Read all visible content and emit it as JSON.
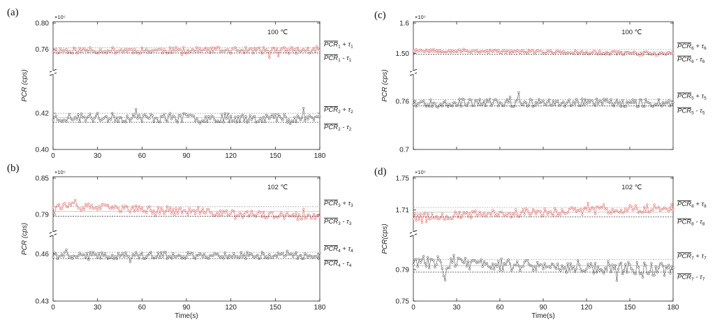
{
  "colors": {
    "red_series": "#e8706e",
    "gray_series": "#666666",
    "band_line": "#999999",
    "mean_line": "#222222"
  },
  "chart_data": [
    {
      "type": "line",
      "panel": "(a)",
      "temperature": "100 ℃",
      "multiplier": "×10⁵",
      "ylabel": "PCR (cps)",
      "xlabel": "",
      "xlim": [
        0,
        180
      ],
      "x_ticks": [
        "0",
        "30",
        "60",
        "90",
        "120",
        "150",
        "180"
      ],
      "broken_y_axis": true,
      "upper": {
        "ylim": [
          0.73,
          0.8
        ],
        "y_ticks": [
          "0.76",
          "0.80"
        ]
      },
      "lower": {
        "ylim": [
          0.4,
          0.44
        ],
        "y_ticks": [
          "0.40",
          "0.42"
        ]
      },
      "series": [
        {
          "segment": "upper",
          "color": "red",
          "mean": 0.758,
          "tau": 0.004,
          "mean_label": "PCR",
          "mean_sub": "1",
          "tau_label": "τ",
          "tau_sub": "1",
          "seed": 11,
          "noise": 0.005,
          "trend": 0
        },
        {
          "segment": "lower",
          "color": "gray",
          "mean": 0.4175,
          "tau": 0.0025,
          "mean_label": "PCR",
          "mean_sub": "2",
          "tau_label": "τ",
          "tau_sub": "2",
          "seed": 23,
          "noise": 0.0025,
          "trend": 0
        }
      ]
    },
    {
      "type": "line",
      "panel": "(b)",
      "temperature": "102 ℃",
      "multiplier": "×10⁵",
      "ylabel": "PCR (cps)",
      "xlabel": "Time(s)",
      "xlim": [
        0,
        180
      ],
      "x_ticks": [
        "0",
        "30",
        "60",
        "90",
        "120",
        "150",
        "180"
      ],
      "broken_y_axis": true,
      "upper": {
        "ylim": [
          0.765,
          0.85
        ],
        "y_ticks": [
          "0.79",
          "0.85"
        ]
      },
      "lower": {
        "ylim": [
          0.43,
          0.47
        ],
        "y_ticks": [
          "0.43",
          "0.46"
        ]
      },
      "series": [
        {
          "segment": "upper",
          "color": "red",
          "mean": 0.795,
          "tau": 0.008,
          "mean_label": "PCR",
          "mean_sub": "3",
          "tau_label": "τ",
          "tau_sub": "3",
          "seed": 37,
          "noise": 0.006,
          "trend": -0.02
        },
        {
          "segment": "lower",
          "color": "gray",
          "mean": 0.459,
          "tau": 0.002,
          "mean_label": "PCR",
          "mean_sub": "4",
          "tau_label": "τ",
          "tau_sub": "4",
          "seed": 41,
          "noise": 0.0022,
          "trend": 0
        }
      ]
    },
    {
      "type": "line",
      "panel": "(c)",
      "temperature": "100 ℃",
      "multiplier": "×10⁵",
      "ylabel": "PCR (cps)",
      "xlabel": "",
      "xlim": [
        0,
        180
      ],
      "x_ticks": [],
      "broken_y_axis": true,
      "upper": {
        "ylim": [
          1.45,
          1.6
        ],
        "y_ticks": [
          "1.50",
          "1.6"
        ]
      },
      "lower": {
        "ylim": [
          0.7,
          0.79
        ],
        "y_ticks": [
          "0.7",
          "0.76"
        ]
      },
      "series": [
        {
          "segment": "upper",
          "color": "red",
          "mean": 1.505,
          "tau": 0.008,
          "mean_label": "PCR",
          "mean_sub": "6",
          "tau_label": "τ",
          "tau_sub": "6",
          "seed": 53,
          "noise": 0.006,
          "trend": -0.012
        },
        {
          "segment": "lower",
          "color": "gray",
          "mean": 0.758,
          "tau": 0.004,
          "mean_label": "PCR",
          "mean_sub": "5",
          "tau_label": "τ",
          "tau_sub": "5",
          "seed": 67,
          "noise": 0.005,
          "trend": 0
        }
      ]
    },
    {
      "type": "line",
      "panel": "(d)",
      "temperature": "102 ℃",
      "multiplier": "×10⁵",
      "ylabel": "PCR(cps)",
      "xlabel": "Time(s)",
      "xlim": [
        0,
        180
      ],
      "x_ticks": [
        "0",
        "30",
        "60",
        "90",
        "120",
        "150",
        "180"
      ],
      "broken_y_axis": true,
      "upper": {
        "ylim": [
          1.685,
          1.75
        ],
        "y_ticks": [
          "1.71",
          "1.75"
        ]
      },
      "lower": {
        "ylim": [
          0.75,
          0.83
        ],
        "y_ticks": [
          "0.75",
          "0.79"
        ]
      },
      "series": [
        {
          "segment": "upper",
          "color": "red",
          "mean": 1.707,
          "tau": 0.006,
          "mean_label": "PCR",
          "mean_sub": "8",
          "tau_label": "τ",
          "tau_sub": "8",
          "seed": 79,
          "noise": 0.005,
          "trend": 0.012
        },
        {
          "segment": "lower",
          "color": "gray",
          "mean": 0.795,
          "tau": 0.008,
          "mean_label": "PCR",
          "mean_sub": "7",
          "tau_label": "τ",
          "tau_sub": "7",
          "seed": 83,
          "noise": 0.008,
          "trend": -0.01
        }
      ]
    }
  ]
}
